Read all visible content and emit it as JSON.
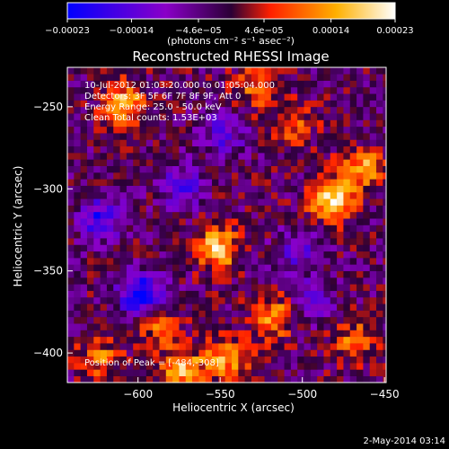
{
  "chart_data": {
    "type": "heatmap",
    "title": "Reconstructed RHESSI Image",
    "xlabel": "Heliocentric X (arcsec)",
    "ylabel": "Heliocentric Y (arcsec)",
    "xlim": [
      -643,
      -449
    ],
    "ylim": [
      -418,
      -226
    ],
    "x_ticks": [
      -600,
      -550,
      -500,
      -450
    ],
    "x_tick_labels": [
      "−600",
      "−550",
      "−500",
      "−450"
    ],
    "y_ticks": [
      -400,
      -350,
      -300,
      -250
    ],
    "y_tick_labels": [
      "−400",
      "−350",
      "−300",
      "−250"
    ],
    "colorbar": {
      "range": [
        -0.00023,
        0.00023
      ],
      "ticks": [
        -0.00023,
        -0.00014,
        -4.6e-05,
        4.6e-05,
        0.00014,
        0.00023
      ],
      "tick_labels": [
        "−0.00023",
        "−0.00014",
        "−4.6e−05",
        "4.6e−05",
        "0.00014",
        "0.00023"
      ],
      "unit_label": "(photons cm⁻² s⁻¹ asec⁻²)",
      "colors": [
        "#0000ff",
        "#8a00c8",
        "#2b0035",
        "#ff2000",
        "#ffb000",
        "#ffffff"
      ]
    },
    "annotations": [
      "10-Jul-2012 01:03:20.000 to 01:05:04.000",
      "Detectors: 3F 5F 6F 7F 8F 9F, Att 0",
      "Energy Range: 25.0 - 50.0 keV",
      "Clean    Total counts: 1.53E+03"
    ],
    "peak_label": "Position of Peak = [-484,-308]",
    "peak": [
      -484,
      -308
    ],
    "sources": [
      {
        "x": -484,
        "y": -308,
        "value": 0.00023
      },
      {
        "x": -554,
        "y": -338,
        "value": 0.0002
      },
      {
        "x": -610,
        "y": -250,
        "value": 0.00017
      },
      {
        "x": -465,
        "y": -290,
        "value": 0.00016
      },
      {
        "x": -520,
        "y": -380,
        "value": 0.00015
      },
      {
        "x": -575,
        "y": -412,
        "value": 0.00018
      },
      {
        "x": -548,
        "y": -405,
        "value": 0.00016
      },
      {
        "x": -470,
        "y": -395,
        "value": 0.00012
      },
      {
        "x": -530,
        "y": -240,
        "value": 0.00012
      },
      {
        "x": -507,
        "y": -262,
        "value": 0.0001
      },
      {
        "x": -590,
        "y": -385,
        "value": 0.00011
      },
      {
        "x": -625,
        "y": -405,
        "value": 0.00012
      },
      {
        "x": -600,
        "y": -367,
        "value": -0.00023
      },
      {
        "x": -625,
        "y": -320,
        "value": -0.00016
      },
      {
        "x": -575,
        "y": -300,
        "value": -0.00013
      },
      {
        "x": -550,
        "y": -268,
        "value": -0.00011
      },
      {
        "x": -505,
        "y": -340,
        "value": -0.0001
      },
      {
        "x": -495,
        "y": -370,
        "value": -9e-05
      }
    ]
  },
  "footer": {
    "date": "2-May-2014 03:14"
  }
}
